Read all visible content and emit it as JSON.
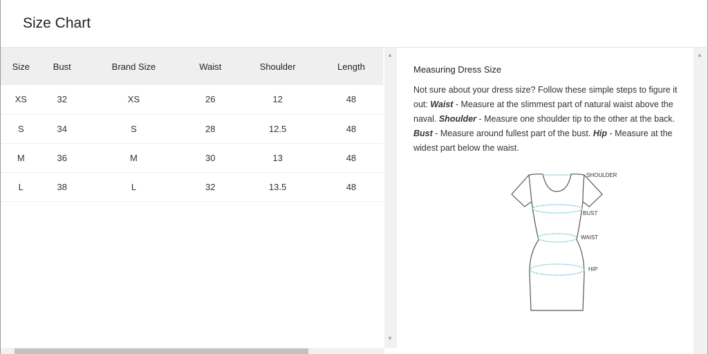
{
  "title": "Size Chart",
  "table": {
    "headers": [
      "Size",
      "Bust",
      "Brand Size",
      "Waist",
      "Shoulder",
      "Length"
    ],
    "rows": [
      [
        "XS",
        "32",
        "XS",
        "26",
        "12",
        "48"
      ],
      [
        "S",
        "34",
        "S",
        "28",
        "12.5",
        "48"
      ],
      [
        "M",
        "36",
        "M",
        "30",
        "13",
        "48"
      ],
      [
        "L",
        "38",
        "L",
        "32",
        "13.5",
        "48"
      ]
    ]
  },
  "guide": {
    "heading": "Measuring Dress Size",
    "intro": "Not sure about your dress size? Follow these simple steps to figure it out: ",
    "items": [
      {
        "term": "Waist",
        "text": " - Measure at the slimmest part of natural waist above the naval. "
      },
      {
        "term": "Shoulder",
        "text": " - Measure one shoulder tip to the other at the back. "
      },
      {
        "term": "Bust",
        "text": " - Measure around fullest part of the bust. "
      },
      {
        "term": "Hip",
        "text": " - Measure at the widest part below the waist."
      }
    ],
    "diagram_labels": [
      "SHOULDER",
      "BUST",
      "WAIST",
      "HIP"
    ]
  },
  "colors": {
    "measure_line": "#7cc6d6",
    "header_bg": "#efefef"
  }
}
